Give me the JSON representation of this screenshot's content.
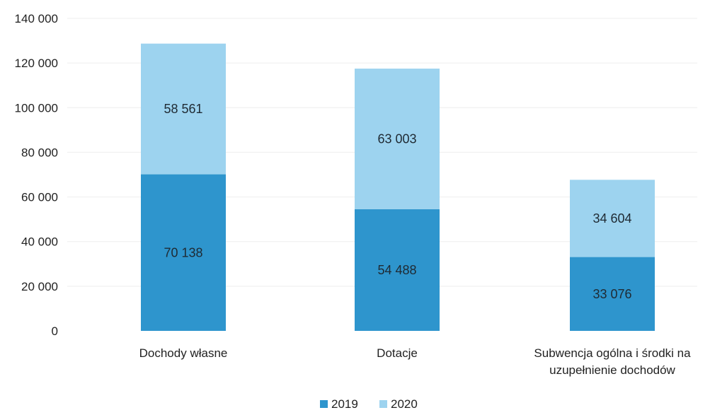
{
  "chart_data": {
    "type": "bar",
    "stacked": true,
    "categories": [
      [
        "Dochody własne"
      ],
      [
        "Dotacje"
      ],
      [
        "Subwencja ogólna i środki na",
        "uzupełnienie dochodów"
      ]
    ],
    "series": [
      {
        "name": "2019",
        "values": [
          70138,
          54488,
          33076
        ],
        "labels": [
          "70 138",
          "54 488",
          "33 076"
        ],
        "color": "#2e95cd"
      },
      {
        "name": "2020",
        "values": [
          58561,
          63003,
          34604
        ],
        "labels": [
          "58 561",
          "63 003",
          "34 604"
        ],
        "color": "#9dd3ef"
      }
    ],
    "ylim": [
      0,
      140000
    ],
    "yticks": [
      0,
      20000,
      40000,
      60000,
      80000,
      100000,
      120000,
      140000
    ],
    "ytick_labels": [
      "0",
      "20 000",
      "40 000",
      "60 000",
      "80 000",
      "100 000",
      "120 000",
      "140 000"
    ],
    "grid": true,
    "legend_position": "bottom",
    "title": "",
    "xlabel": "",
    "ylabel": ""
  }
}
